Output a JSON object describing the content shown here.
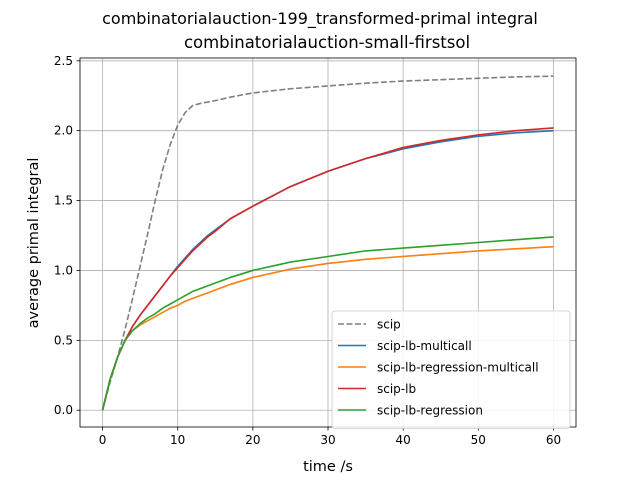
{
  "chart_data": {
    "type": "line",
    "title": "combinatorialauction-199_transformed-primal integral",
    "subtitle": "combinatorialauction-small-firstsol",
    "xlabel": "time /s",
    "ylabel": "average primal integral",
    "xlim": [
      -3,
      63
    ],
    "ylim": [
      -0.12,
      2.52
    ],
    "xticks": [
      "0",
      "10",
      "20",
      "30",
      "40",
      "50",
      "60"
    ],
    "yticks": [
      "0.0",
      "0.5",
      "1.0",
      "1.5",
      "2.0",
      "2.5"
    ],
    "grid": true,
    "legend_position": "lower-right",
    "x": [
      0,
      1,
      2,
      3,
      4,
      5,
      6,
      7,
      8,
      9,
      10,
      11,
      12,
      13,
      14,
      15,
      17,
      20,
      25,
      30,
      35,
      40,
      45,
      50,
      55,
      60
    ],
    "series": [
      {
        "name": "scip",
        "color": "#7f7f7f",
        "style": "dashed",
        "values": [
          0,
          0.2,
          0.38,
          0.58,
          0.8,
          1.03,
          1.26,
          1.5,
          1.72,
          1.9,
          2.04,
          2.13,
          2.18,
          2.195,
          2.205,
          2.215,
          2.24,
          2.27,
          2.3,
          2.32,
          2.34,
          2.355,
          2.365,
          2.375,
          2.385,
          2.39
        ]
      },
      {
        "name": "scip-lb-multicall",
        "color": "#1f77b4",
        "style": "solid",
        "values": [
          0,
          0.22,
          0.38,
          0.5,
          0.6,
          0.68,
          0.75,
          0.82,
          0.89,
          0.96,
          1.03,
          1.09,
          1.15,
          1.2,
          1.25,
          1.29,
          1.37,
          1.46,
          1.6,
          1.71,
          1.8,
          1.87,
          1.92,
          1.96,
          1.985,
          2.0
        ]
      },
      {
        "name": "scip-lb-regression-multicall",
        "color": "#ff7f0e",
        "style": "solid",
        "values": [
          0,
          0.22,
          0.38,
          0.5,
          0.57,
          0.61,
          0.64,
          0.67,
          0.7,
          0.73,
          0.75,
          0.78,
          0.8,
          0.82,
          0.84,
          0.86,
          0.9,
          0.95,
          1.01,
          1.05,
          1.08,
          1.1,
          1.12,
          1.14,
          1.155,
          1.17
        ]
      },
      {
        "name": "scip-lb",
        "color": "#d62728",
        "style": "solid",
        "values": [
          0,
          0.22,
          0.38,
          0.5,
          0.6,
          0.68,
          0.75,
          0.82,
          0.89,
          0.96,
          1.02,
          1.08,
          1.14,
          1.19,
          1.24,
          1.28,
          1.37,
          1.46,
          1.6,
          1.71,
          1.8,
          1.88,
          1.93,
          1.97,
          2.0,
          2.02
        ]
      },
      {
        "name": "scip-lb-regression",
        "color": "#2ca02c",
        "style": "solid",
        "values": [
          0,
          0.22,
          0.38,
          0.5,
          0.57,
          0.62,
          0.66,
          0.69,
          0.73,
          0.76,
          0.79,
          0.82,
          0.85,
          0.87,
          0.89,
          0.91,
          0.95,
          1.0,
          1.06,
          1.1,
          1.14,
          1.16,
          1.18,
          1.2,
          1.22,
          1.24
        ]
      }
    ]
  }
}
